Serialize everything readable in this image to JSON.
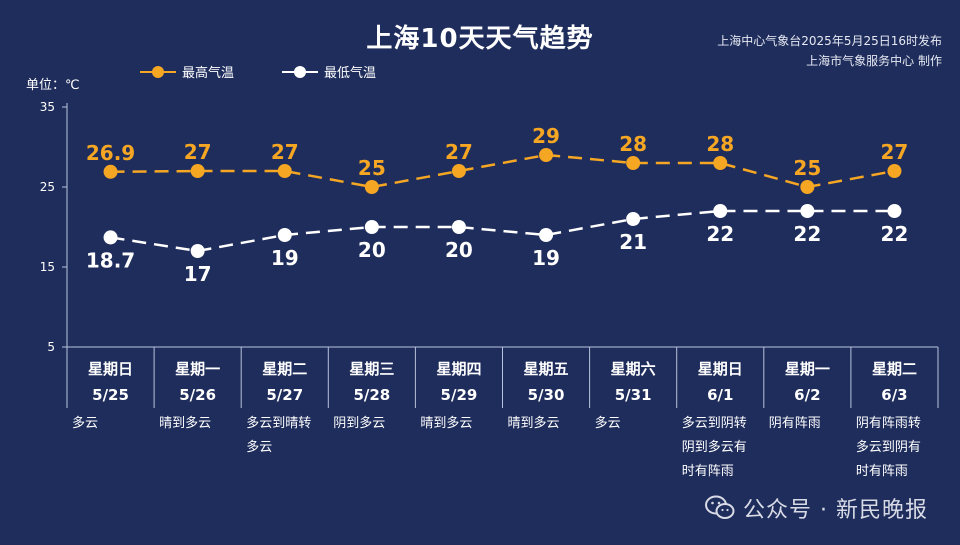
{
  "header": {
    "title": "上海10天天气趋势",
    "source_line1": "上海中心气象台2025年5月25日16时发布",
    "source_line2": "上海市气象服务中心  制作",
    "unit": "单位：℃"
  },
  "legend": {
    "high_label": "最高气温",
    "low_label": "最低气温"
  },
  "watermark": "公众号 · 新民晚报",
  "colors": {
    "background": "#1f2d5c",
    "high": "#f5a623",
    "low": "#ffffff",
    "axis": "#b8c2dc"
  },
  "chart_data": {
    "type": "line",
    "ylim": [
      5,
      35
    ],
    "yticks": [
      5,
      15,
      25,
      35
    ],
    "categories": [
      {
        "weekday": "星期日",
        "date": "5/25",
        "weather": "多云"
      },
      {
        "weekday": "星期一",
        "date": "5/26",
        "weather": "晴到多云"
      },
      {
        "weekday": "星期二",
        "date": "5/27",
        "weather": "多云到晴转\n多云"
      },
      {
        "weekday": "星期三",
        "date": "5/28",
        "weather": "阴到多云"
      },
      {
        "weekday": "星期四",
        "date": "5/29",
        "weather": "晴到多云"
      },
      {
        "weekday": "星期五",
        "date": "5/30",
        "weather": "晴到多云"
      },
      {
        "weekday": "星期六",
        "date": "5/31",
        "weather": "多云"
      },
      {
        "weekday": "星期日",
        "date": "6/1",
        "weather": "多云到阴转\n阴到多云有\n时有阵雨"
      },
      {
        "weekday": "星期一",
        "date": "6/2",
        "weather": "阴有阵雨"
      },
      {
        "weekday": "星期二",
        "date": "6/3",
        "weather": "阴有阵雨转\n多云到阴有\n时有阵雨"
      }
    ],
    "series": [
      {
        "name": "最高气温",
        "values": [
          26.9,
          27,
          27,
          25,
          27,
          29,
          28,
          28,
          25,
          27
        ]
      },
      {
        "name": "最低气温",
        "values": [
          18.7,
          17,
          19,
          20,
          20,
          19,
          21,
          22,
          22,
          22
        ]
      }
    ],
    "point_labels": {
      "high": [
        "26.9",
        "27",
        "27",
        "25",
        "27",
        "29",
        "28",
        "28",
        "25",
        "27"
      ],
      "low": [
        "18.7",
        "17",
        "19",
        "20",
        "20",
        "19",
        "21",
        "22",
        "22",
        "22"
      ]
    }
  }
}
